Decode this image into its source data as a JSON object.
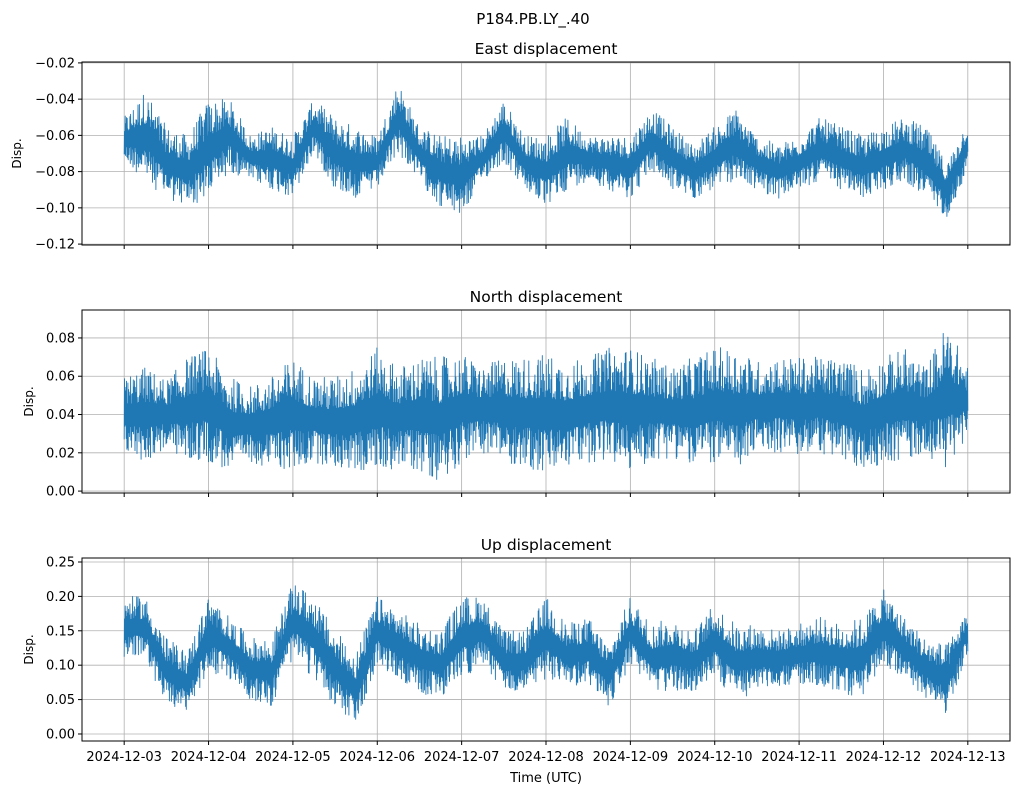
{
  "chart_data": {
    "type": "line",
    "title": "P184.PB.LY_.40",
    "xlabel": "Time (UTC)",
    "x_ticks": [
      "2024-12-03",
      "2024-12-04",
      "2024-12-05",
      "2024-12-06",
      "2024-12-07",
      "2024-12-08",
      "2024-12-09",
      "2024-12-10",
      "2024-12-11",
      "2024-12-12",
      "2024-12-13"
    ],
    "x_unit": "days since 2024-12-03",
    "xlim": [
      -0.5,
      10.5
    ],
    "grid": true,
    "line_color": "#1f77b4",
    "panels": [
      {
        "title": "East displacement",
        "ylabel": "Disp.",
        "ylim": [
          -0.1205,
          -0.0195
        ],
        "y_ticks": [
          -0.12,
          -0.1,
          -0.08,
          -0.06,
          -0.04,
          -0.02
        ],
        "y_tick_labels": [
          "−0.12",
          "−0.10",
          "−0.08",
          "−0.06",
          "−0.04",
          "−0.02"
        ],
        "envelope_x": [
          0,
          0.25,
          0.5,
          0.75,
          1,
          1.25,
          1.5,
          1.75,
          2,
          2.25,
          2.5,
          2.75,
          3,
          3.25,
          3.5,
          3.75,
          4,
          4.25,
          4.5,
          4.75,
          5,
          5.25,
          5.5,
          5.75,
          6,
          6.25,
          6.5,
          6.75,
          7,
          7.25,
          7.5,
          7.75,
          8,
          8.25,
          8.5,
          8.75,
          9,
          9.25,
          9.5,
          9.75,
          10
        ],
        "hi": [
          -0.05,
          -0.035,
          -0.055,
          -0.06,
          -0.04,
          -0.04,
          -0.06,
          -0.055,
          -0.06,
          -0.04,
          -0.05,
          -0.055,
          -0.06,
          -0.03,
          -0.055,
          -0.06,
          -0.06,
          -0.06,
          -0.04,
          -0.06,
          -0.06,
          -0.05,
          -0.06,
          -0.06,
          -0.06,
          -0.045,
          -0.055,
          -0.065,
          -0.055,
          -0.045,
          -0.06,
          -0.065,
          -0.06,
          -0.05,
          -0.055,
          -0.06,
          -0.055,
          -0.05,
          -0.055,
          -0.075,
          -0.05
        ],
        "lo": [
          -0.075,
          -0.085,
          -0.095,
          -0.1,
          -0.095,
          -0.08,
          -0.085,
          -0.09,
          -0.095,
          -0.07,
          -0.09,
          -0.095,
          -0.09,
          -0.07,
          -0.085,
          -0.1,
          -0.105,
          -0.085,
          -0.075,
          -0.09,
          -0.1,
          -0.09,
          -0.085,
          -0.09,
          -0.095,
          -0.08,
          -0.09,
          -0.095,
          -0.09,
          -0.085,
          -0.09,
          -0.095,
          -0.09,
          -0.085,
          -0.09,
          -0.095,
          -0.09,
          -0.085,
          -0.095,
          -0.105,
          -0.08
        ]
      },
      {
        "title": "North displacement",
        "ylabel": "Disp.",
        "ylim": [
          -0.001,
          0.0946
        ],
        "y_ticks": [
          0,
          0.02,
          0.04,
          0.06,
          0.08
        ],
        "y_tick_labels": [
          "0.00",
          "0.02",
          "0.04",
          "0.06",
          "0.08"
        ],
        "envelope_x": [
          0,
          0.25,
          0.5,
          0.75,
          1,
          1.25,
          1.5,
          1.75,
          2,
          2.25,
          2.5,
          2.75,
          3,
          3.25,
          3.5,
          3.75,
          4,
          4.25,
          4.5,
          4.75,
          5,
          5.25,
          5.5,
          5.75,
          6,
          6.25,
          6.5,
          6.75,
          7,
          7.25,
          7.5,
          7.75,
          8,
          8.25,
          8.5,
          8.75,
          9,
          9.25,
          9.5,
          9.75,
          10
        ],
        "hi": [
          0.06,
          0.065,
          0.058,
          0.07,
          0.075,
          0.06,
          0.055,
          0.06,
          0.07,
          0.06,
          0.06,
          0.065,
          0.075,
          0.065,
          0.07,
          0.07,
          0.072,
          0.065,
          0.07,
          0.07,
          0.072,
          0.068,
          0.07,
          0.075,
          0.075,
          0.07,
          0.065,
          0.07,
          0.075,
          0.075,
          0.068,
          0.07,
          0.07,
          0.07,
          0.07,
          0.065,
          0.07,
          0.075,
          0.065,
          0.088,
          0.065
        ],
        "lo": [
          0.02,
          0.015,
          0.022,
          0.015,
          0.015,
          0.01,
          0.015,
          0.012,
          0.01,
          0.015,
          0.012,
          0.01,
          0.01,
          0.012,
          0.01,
          0.005,
          0.015,
          0.02,
          0.015,
          0.012,
          0.008,
          0.012,
          0.015,
          0.015,
          0.01,
          0.015,
          0.018,
          0.012,
          0.015,
          0.01,
          0.02,
          0.02,
          0.018,
          0.02,
          0.015,
          0.01,
          0.015,
          0.015,
          0.02,
          0.01,
          0.03
        ]
      },
      {
        "title": "Up displacement",
        "ylabel": "Disp.",
        "ylim": [
          -0.0102,
          0.2558
        ],
        "y_ticks": [
          0,
          0.05,
          0.1,
          0.15,
          0.2,
          0.25
        ],
        "y_tick_labels": [
          "0.00",
          "0.05",
          "0.10",
          "0.15",
          "0.20",
          "0.25"
        ],
        "envelope_x": [
          0,
          0.25,
          0.5,
          0.75,
          1,
          1.25,
          1.5,
          1.75,
          2,
          2.25,
          2.5,
          2.75,
          3,
          3.25,
          3.5,
          3.75,
          4,
          4.25,
          4.5,
          4.75,
          5,
          5.25,
          5.5,
          5.75,
          6,
          6.25,
          6.5,
          6.75,
          7,
          7.25,
          7.5,
          7.75,
          8,
          8.25,
          8.5,
          8.75,
          9,
          9.25,
          9.5,
          9.75,
          10
        ],
        "hi": [
          0.2,
          0.2,
          0.14,
          0.12,
          0.2,
          0.17,
          0.14,
          0.14,
          0.22,
          0.2,
          0.15,
          0.12,
          0.2,
          0.18,
          0.16,
          0.15,
          0.2,
          0.2,
          0.15,
          0.15,
          0.2,
          0.16,
          0.17,
          0.13,
          0.2,
          0.16,
          0.17,
          0.15,
          0.19,
          0.16,
          0.16,
          0.15,
          0.16,
          0.17,
          0.16,
          0.17,
          0.21,
          0.17,
          0.14,
          0.13,
          0.18
        ],
        "lo": [
          0.11,
          0.11,
          0.04,
          0.03,
          0.09,
          0.08,
          0.05,
          0.04,
          0.11,
          0.08,
          0.04,
          0.01,
          0.1,
          0.08,
          0.06,
          0.05,
          0.08,
          0.1,
          0.06,
          0.06,
          0.08,
          0.07,
          0.07,
          0.04,
          0.1,
          0.06,
          0.06,
          0.06,
          0.08,
          0.05,
          0.06,
          0.07,
          0.07,
          0.07,
          0.06,
          0.05,
          0.1,
          0.08,
          0.05,
          0.03,
          0.12
        ]
      }
    ]
  }
}
